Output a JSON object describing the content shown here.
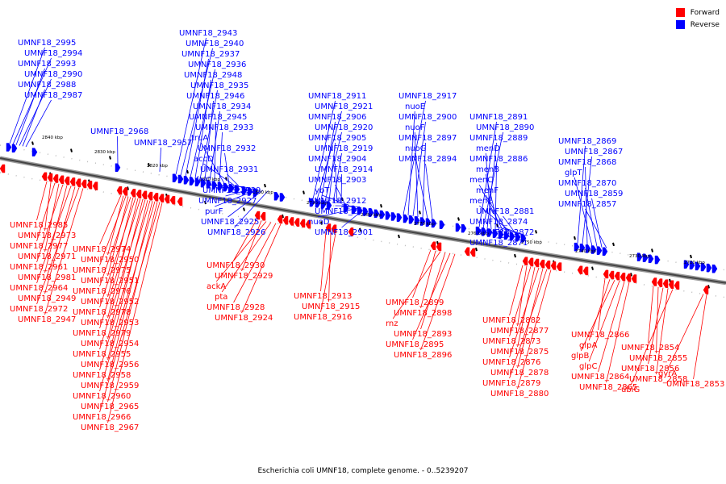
{
  "legend": [
    {
      "label": "Forward",
      "color": "#ff0000"
    },
    {
      "label": "Reverse",
      "color": "#0000ff"
    }
  ],
  "caption": "Escherichia coli UMNF18, complete genome. - 0..5239207",
  "kbp_labels": [
    "2840 kbp",
    "2830 kbp",
    "2820 kbp",
    "2810 kbp",
    "2800 kbp",
    "2790 kbp",
    "2780 kbp",
    "2770 kbp",
    "2760 kbp",
    "2750 kbp",
    "2740 kbp",
    "2730 kbp",
    "2720 kbp"
  ],
  "reverse_labels": [
    "UMNF18_2995",
    "UMNF18_2994",
    "UMNF18_2993",
    "UMNF18_2990",
    "UMNF18_2988",
    "UMNF18_2987",
    "UMNF18_2968",
    "UMNF18_2957",
    "UMNF18_2943",
    "UMNF18_2940",
    "UMNF18_2937",
    "UMNF18_2936",
    "UMNF18_2948",
    "UMNF18_2935",
    "UMNF18_2946",
    "UMNF18_2934",
    "UMNF18_2945",
    "UMNF18_2933",
    "truA",
    "UMNF18_2932",
    "accD",
    "UMNF18_2931",
    "folC",
    "UMNF18_2939",
    "UMNF18_2927",
    "purF",
    "UMNF18_2925",
    "UMNF18_2926",
    "UMNF18_2911",
    "UMNF18_2921",
    "UMNF18_2906",
    "UMNF18_2920",
    "UMNF18_2905",
    "UMNF18_2919",
    "UMNF18_2904",
    "UMNF18_2914",
    "UMNF18_2903",
    "ybT",
    "UMNF18_2912",
    "UMNF18_2902",
    "nuoD",
    "UMNF18_2901",
    "UMNF18_2917",
    "nuoE",
    "UMNF18_2900",
    "nuoF",
    "UMNF18_2897",
    "nuoG",
    "UMNF18_2894",
    "UMNF18_2891",
    "UMNF18_2890",
    "UMNF18_2889",
    "menD",
    "UMNF18_2886",
    "menB",
    "menC",
    "menF",
    "menE",
    "UMNF18_2881",
    "UMNF18_2874",
    "UMNF18_2872",
    "UMNF18_2871",
    "UMNF18_2869",
    "UMNF18_2867",
    "UMNF18_2868",
    "glpT",
    "UMNF18_2870",
    "UMNF18_2859",
    "UMNF18_2857"
  ],
  "forward_labels": [
    "UMNF18_2985",
    "UMNF18_2973",
    "UMNF18_2977",
    "UMNF18_2971",
    "UMNF18_2961",
    "UMNF18_2981",
    "UMNF18_2964",
    "UMNF18_2949",
    "UMNF18_2972",
    "UMNF18_2947",
    "UMNF18_2974",
    "UMNF18_2950",
    "UMNF18_2975",
    "UMNF18_2951",
    "UMNF18_2976",
    "UMNF18_2952",
    "UMNF18_2978",
    "UMNF18_2953",
    "UMNF18_2979",
    "UMNF18_2954",
    "UMNF18_2955",
    "UMNF18_2956",
    "UMNF18_2958",
    "UMNF18_2959",
    "UMNF18_2960",
    "UMNF18_2965",
    "UMNF18_2966",
    "UMNF18_2967",
    "UMNF18_2930",
    "UMNF18_2929",
    "ackA",
    "pta",
    "UMNF18_2928",
    "UMNF18_2924",
    "UMNF18_2913",
    "UMNF18_2915",
    "UMNF18_2916",
    "UMNF18_2899",
    "UMNF18_2898",
    "rnz",
    "UMNF18_2893",
    "UMNF18_2895",
    "UMNF18_2896",
    "UMNF18_2882",
    "UMNF18_2877",
    "UMNF18_2873",
    "UMNF18_2875",
    "UMNF18_2876",
    "UMNF18_2878",
    "UMNF18_2879",
    "UMNF18_2880",
    "UMNF18_2866",
    "glpA",
    "glpB",
    "glpC",
    "UMNF18_2864",
    "UMNF18_2865",
    "UMNF18_2854",
    "UMNF18_2855",
    "UMNF18_2856",
    "UMNF18_2858",
    "ubiG",
    "gyrA",
    "UMNF18_2853"
  ]
}
